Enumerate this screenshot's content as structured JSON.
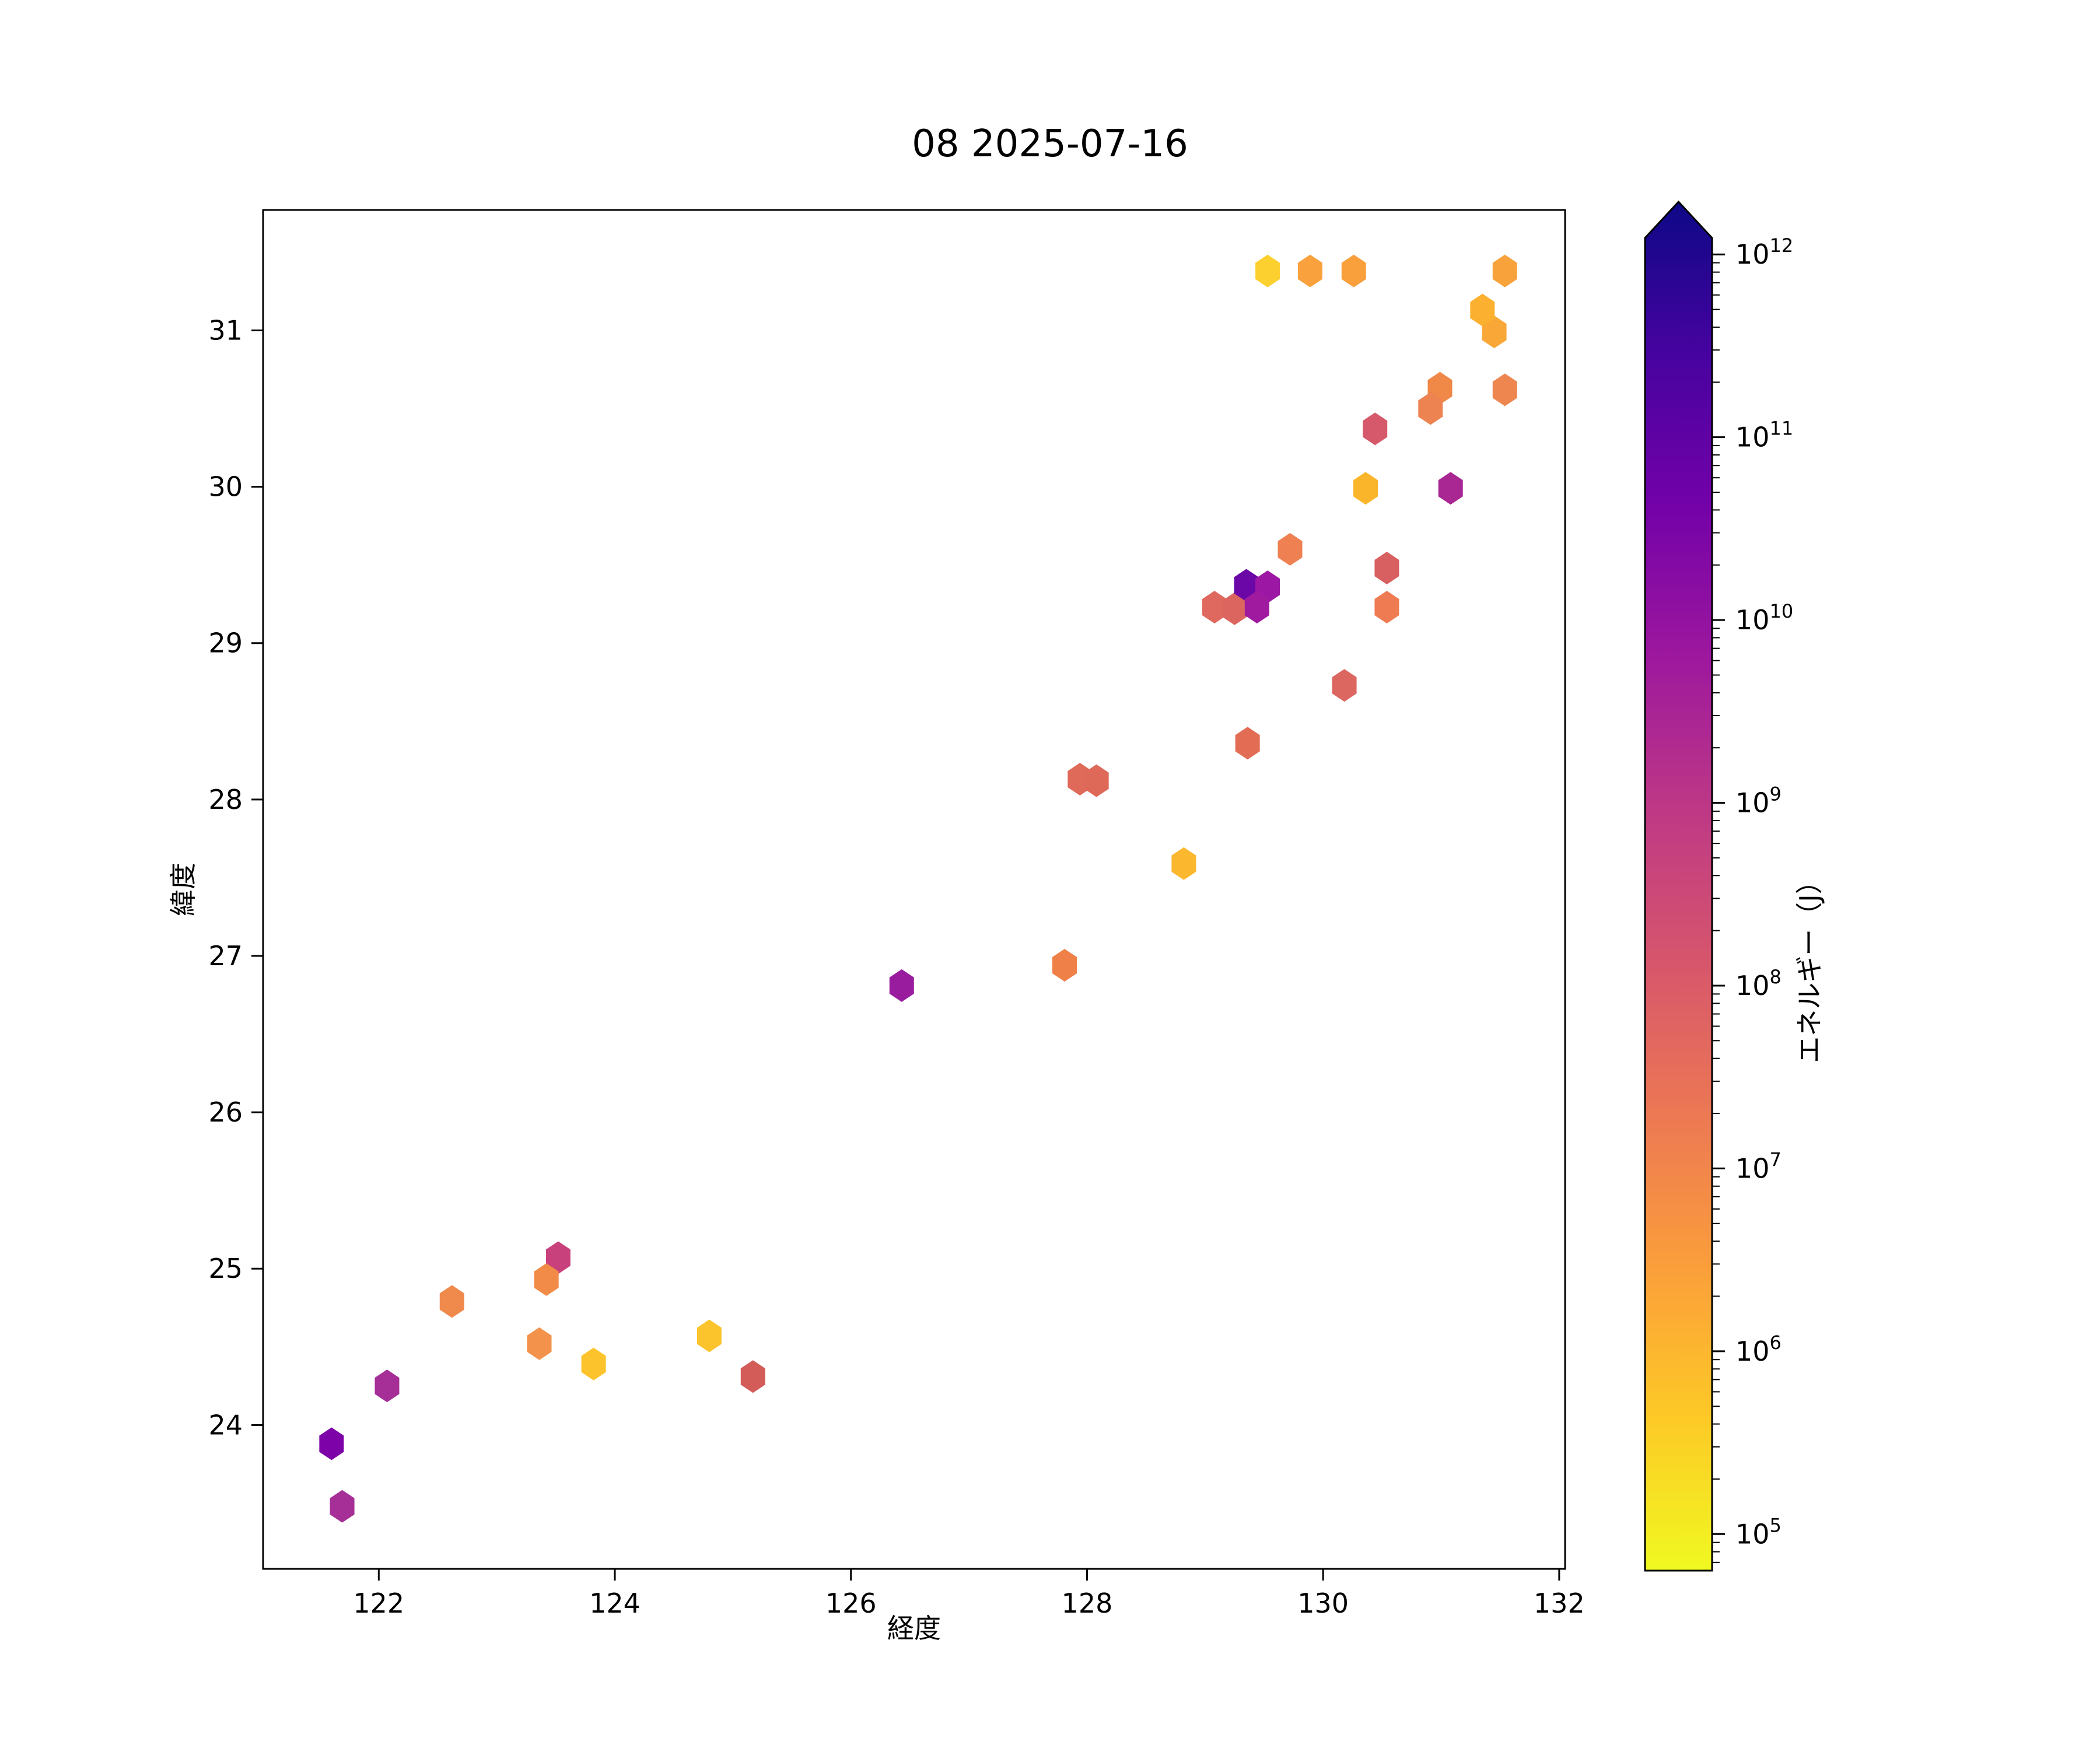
{
  "title": "08 2025-07-16",
  "chart_data": {
    "type": "scatter",
    "marker": "hexagon",
    "title": "08 2025-07-16",
    "xlabel": "経度",
    "ylabel": "緯度",
    "xlim": [
      121.02,
      132.05
    ],
    "ylim": [
      23.08,
      31.77
    ],
    "xticks": [
      122,
      124,
      126,
      128,
      130,
      132
    ],
    "yticks": [
      24,
      25,
      26,
      27,
      28,
      29,
      30,
      31
    ],
    "grid": false,
    "legend": "none",
    "colorbar": {
      "label": "エネルギー（J）",
      "scale": "log",
      "unit": "J",
      "tick_exponents": [
        5,
        6,
        7,
        8,
        9,
        10,
        11,
        12
      ],
      "range_log10": [
        4.8,
        12.09
      ],
      "extend": "max",
      "colormap": "plasma_r",
      "top_color": "#0d0887",
      "bottom_color": "#f0f921"
    },
    "points": [
      {
        "lon": 129.53,
        "lat": 31.38,
        "energy_log10": 5.6,
        "color": "#FCD12F"
      },
      {
        "lon": 129.89,
        "lat": 31.38,
        "energy_log10": 6.4,
        "color": "#F9A13C"
      },
      {
        "lon": 130.26,
        "lat": 31.38,
        "energy_log10": 6.4,
        "color": "#F9A03D"
      },
      {
        "lon": 131.54,
        "lat": 31.38,
        "energy_log10": 6.3,
        "color": "#F8A23B"
      },
      {
        "lon": 131.45,
        "lat": 30.99,
        "energy_log10": 6.2,
        "color": "#F9A837"
      },
      {
        "lon": 131.35,
        "lat": 31.13,
        "energy_log10": 6.0,
        "color": "#FBB02F"
      },
      {
        "lon": 130.99,
        "lat": 30.63,
        "energy_log10": 6.8,
        "color": "#F08848"
      },
      {
        "lon": 131.54,
        "lat": 30.62,
        "energy_log10": 6.9,
        "color": "#EE8650"
      },
      {
        "lon": 130.91,
        "lat": 30.5,
        "energy_log10": 7.0,
        "color": "#ED8351"
      },
      {
        "lon": 130.44,
        "lat": 30.37,
        "energy_log10": 8.2,
        "color": "#D5586B"
      },
      {
        "lon": 130.36,
        "lat": 29.99,
        "energy_log10": 5.9,
        "color": "#FBB52B"
      },
      {
        "lon": 131.08,
        "lat": 29.99,
        "energy_log10": 9.4,
        "color": "#A82793"
      },
      {
        "lon": 129.72,
        "lat": 29.6,
        "energy_log10": 7.1,
        "color": "#EE8052"
      },
      {
        "lon": 130.54,
        "lat": 29.48,
        "energy_log10": 7.8,
        "color": "#D96060"
      },
      {
        "lon": 129.08,
        "lat": 29.23,
        "energy_log10": 7.6,
        "color": "#E0695F"
      },
      {
        "lon": 129.25,
        "lat": 29.22,
        "energy_log10": 7.7,
        "color": "#DC655F"
      },
      {
        "lon": 129.35,
        "lat": 29.37,
        "energy_log10": 10.6,
        "color": "#6A07A6"
      },
      {
        "lon": 129.53,
        "lat": 29.36,
        "energy_log10": 9.9,
        "color": "#9C17A4"
      },
      {
        "lon": 129.44,
        "lat": 29.23,
        "energy_log10": 9.7,
        "color": "#A01AA0"
      },
      {
        "lon": 130.54,
        "lat": 29.23,
        "energy_log10": 7.2,
        "color": "#EE7B52"
      },
      {
        "lon": 130.18,
        "lat": 28.73,
        "energy_log10": 7.7,
        "color": "#DC6761"
      },
      {
        "lon": 129.36,
        "lat": 28.36,
        "energy_log10": 7.5,
        "color": "#E36C55"
      },
      {
        "lon": 127.94,
        "lat": 28.13,
        "energy_log10": 7.6,
        "color": "#E06A59"
      },
      {
        "lon": 128.08,
        "lat": 28.12,
        "energy_log10": 7.6,
        "color": "#DF6959"
      },
      {
        "lon": 128.82,
        "lat": 27.59,
        "energy_log10": 5.9,
        "color": "#FBB72E"
      },
      {
        "lon": 127.81,
        "lat": 26.94,
        "energy_log10": 7.0,
        "color": "#EE8048"
      },
      {
        "lon": 126.43,
        "lat": 26.81,
        "energy_log10": 9.8,
        "color": "#9A1C9E"
      },
      {
        "lon": 123.52,
        "lat": 25.07,
        "energy_log10": 8.7,
        "color": "#C9417C"
      },
      {
        "lon": 123.42,
        "lat": 24.93,
        "energy_log10": 6.8,
        "color": "#F18B47"
      },
      {
        "lon": 122.62,
        "lat": 24.79,
        "energy_log10": 6.9,
        "color": "#F08A4C"
      },
      {
        "lon": 123.36,
        "lat": 24.52,
        "energy_log10": 6.7,
        "color": "#F3924B"
      },
      {
        "lon": 123.82,
        "lat": 24.39,
        "energy_log10": 5.7,
        "color": "#FCC32C"
      },
      {
        "lon": 124.8,
        "lat": 24.57,
        "energy_log10": 5.7,
        "color": "#FBC42D"
      },
      {
        "lon": 125.17,
        "lat": 24.31,
        "energy_log10": 8.0,
        "color": "#D35C58"
      },
      {
        "lon": 122.07,
        "lat": 24.25,
        "energy_log10": 9.4,
        "color": "#A62F97"
      },
      {
        "lon": 121.6,
        "lat": 23.88,
        "energy_log10": 10.3,
        "color": "#7D03A8"
      },
      {
        "lon": 121.69,
        "lat": 23.48,
        "energy_log10": 9.4,
        "color": "#A62F97"
      }
    ]
  }
}
